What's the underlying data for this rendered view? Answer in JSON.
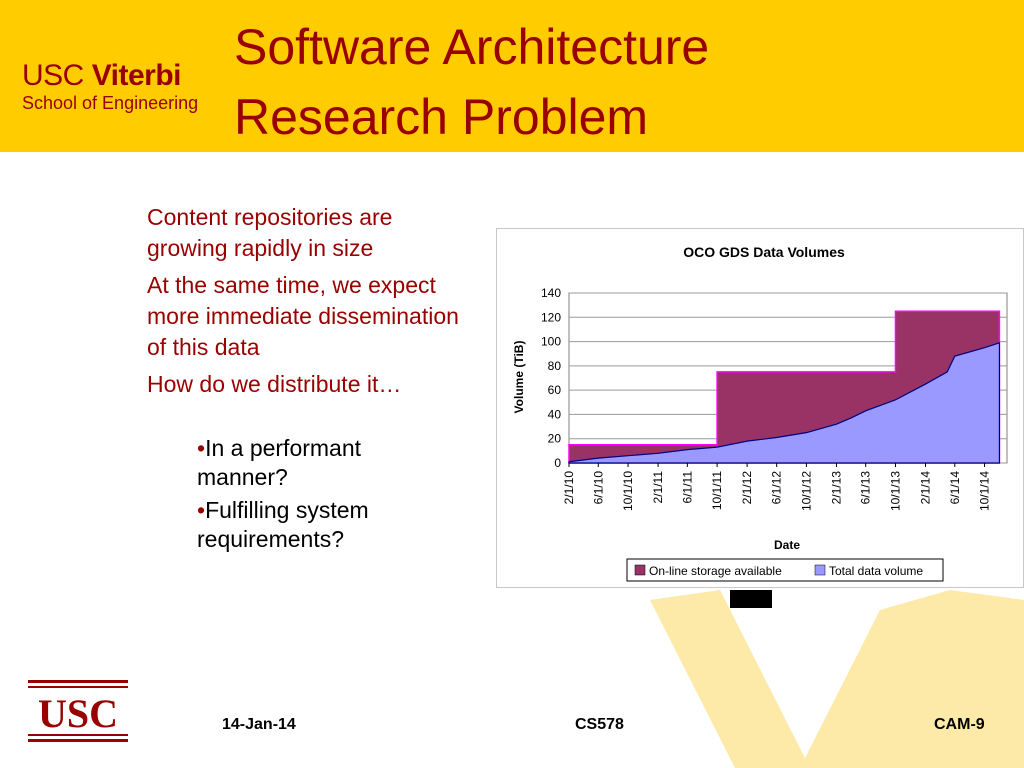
{
  "header": {
    "logo_prefix": "USC",
    "logo_name": "Viterbi",
    "logo_subtitle": "School of Engineering",
    "title_line1": "Software Architecture",
    "title_line2": "Research Problem"
  },
  "content": {
    "points": [
      "Content repositories are growing rapidly in size",
      "At the same time, we expect more immediate dissemination of this data",
      "How do we distribute it…"
    ],
    "bullet_char": "•",
    "subpoints": [
      "In a performant manner?",
      "Fulfilling system requirements?"
    ]
  },
  "chart_data": {
    "type": "area",
    "title": "OCO GDS Data Volumes",
    "xlabel": "Date",
    "ylabel": "Volume (TiB)",
    "ylim": [
      0,
      140
    ],
    "yticks": [
      0,
      20,
      40,
      60,
      80,
      100,
      120,
      140
    ],
    "xticks": [
      "2/1/10",
      "6/1/10",
      "10/1/10",
      "2/1/11",
      "6/1/11",
      "10/1/11",
      "2/1/12",
      "6/1/12",
      "10/1/12",
      "2/1/13",
      "6/1/13",
      "10/1/13",
      "2/1/14",
      "6/1/14",
      "10/1/14"
    ],
    "grid": true,
    "legend_position": "bottom",
    "series": [
      {
        "name": "On-line storage available",
        "color": "#993366",
        "x": [
          "2/1/10",
          "10/1/11",
          "10/1/11",
          "10/1/13",
          "10/1/13",
          "12/1/14"
        ],
        "values": [
          15,
          15,
          75,
          75,
          125,
          125
        ]
      },
      {
        "name": "Total data volume",
        "color": "#9999ff",
        "x": [
          "2/1/10",
          "6/1/10",
          "10/1/10",
          "2/1/11",
          "6/1/11",
          "10/1/11",
          "2/1/12",
          "6/1/12",
          "10/1/12",
          "2/1/13",
          "4/1/13",
          "6/1/13",
          "10/1/13",
          "2/1/14",
          "5/1/14",
          "6/1/14",
          "10/1/14",
          "12/1/14"
        ],
        "values": [
          1,
          4,
          6,
          8,
          11,
          13,
          18,
          21,
          25,
          32,
          37,
          43,
          52,
          65,
          75,
          88,
          95,
          99
        ]
      }
    ]
  },
  "footer": {
    "logo": "USC",
    "date": "14-Jan-14",
    "course": "CS578",
    "slide": "CAM-9"
  }
}
